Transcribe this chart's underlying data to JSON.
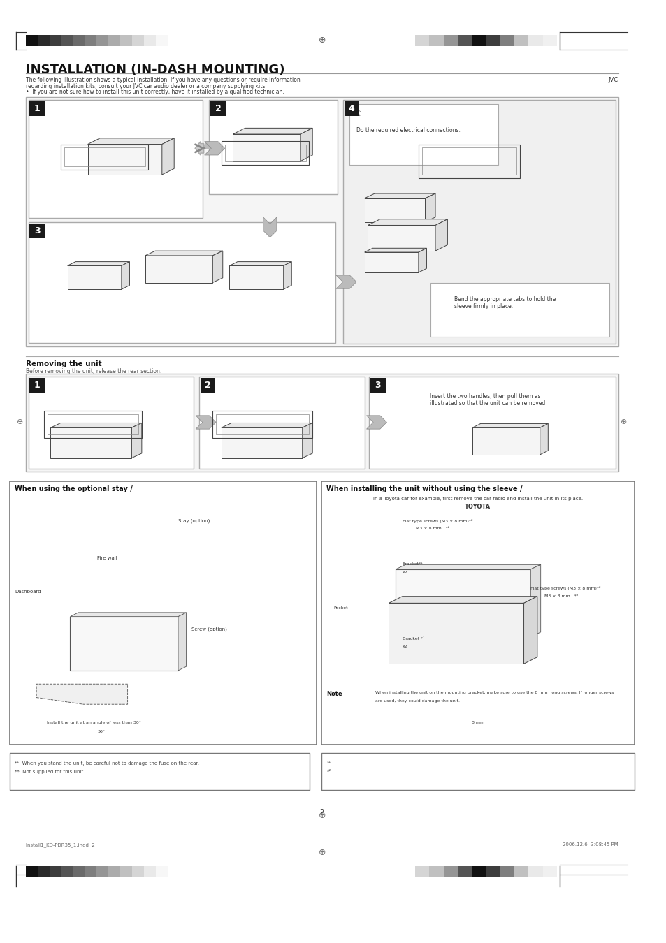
{
  "page_bg": "#ffffff",
  "page_width": 9.54,
  "page_height": 13.5,
  "header_bar_colors_left": [
    "#111111",
    "#2a2a2a",
    "#3d3d3d",
    "#545454",
    "#6a6a6a",
    "#7e7e7e",
    "#959595",
    "#ababab",
    "#c0c0c0",
    "#d5d5d5",
    "#e9e9e9",
    "#f7f7f7"
  ],
  "header_bar_colors_right": [
    "#d5d5d5",
    "#c0c0c0",
    "#959595",
    "#545454",
    "#111111",
    "#3d3d3d",
    "#7e7e7e",
    "#c0c0c0",
    "#e9e9e9",
    "#f0f0f0"
  ],
  "title": "INSTALLATION (IN-DASH MOUNTING)",
  "subtitle1": "The following illustration shows a typical installation. If you have any questions or require information",
  "subtitle2": "regarding installation kits, consult your JVC car audio dealer or a company supplying kits.",
  "subtitle3": "•  If you are not sure how to install this unit correctly, have it installed by a qualified technician.",
  "jvc_label": "JVC",
  "bullet_dot": "•",
  "section2_title": "Removing the unit",
  "section2_sub": "Before removing the unit, release the rear section.",
  "box1_title": "When using the optional stay /",
  "box2_title": "When installing the unit without using the sleeve /",
  "toyota_intro": "In a Toyota car for example, first remove the car radio and install the unit in its place.",
  "toyota_name": "TOYOTA",
  "stay_label": "Stay (option)",
  "firewall_label": "Fire wall",
  "dashboard_label": "Dashboard",
  "screw_label": "Screw (option)",
  "angle_label1": "Install the unit at an angle of less than 30°",
  "angle_label2": "30°",
  "flat_screw1": "Flat type screws (M3 × 8 mm)*²",
  "flat_screw1b": "M3 × 8 mm   *²",
  "bracket1": "Bracket*¹",
  "bracket1x": "x2",
  "pocket_label": "Pocket",
  "bracket2": "Bracket *¹",
  "bracket2x": "x2",
  "flat_screw2": "Flat type screws (M3 × 8 mm)*²",
  "flat_screw2b": "M3 × 8 mm   *²",
  "note_label": "Note",
  "note_text1": "When installing the unit on the mounting bracket, make sure to use the 8 mm  long screws. If longer screws",
  "note_text2": "are used, they could damage the unit.",
  "note_8mm": "8 mm",
  "fn1": "*¹  When you stand the unit, be careful not to damage the fuse on the rear.",
  "fn2": "**  Not supplied for this unit.",
  "fn3": "*¹",
  "fn4": "*²",
  "step4_note_text": "Do the required electrical connections.",
  "step4_bend_text1": "Bend the appropriate tabs to hold the",
  "step4_bend_text2": "sleeve firmly in place.",
  "remove_step3_text1": "Insert the two handles, then pull them as",
  "remove_step3_text2": "illustrated so that the unit can be removed.",
  "page_num": "2",
  "footer_left": "Install1_KD-PDR35_1.indd  2",
  "footer_right": "2006.12.6  3:08:45 PM"
}
